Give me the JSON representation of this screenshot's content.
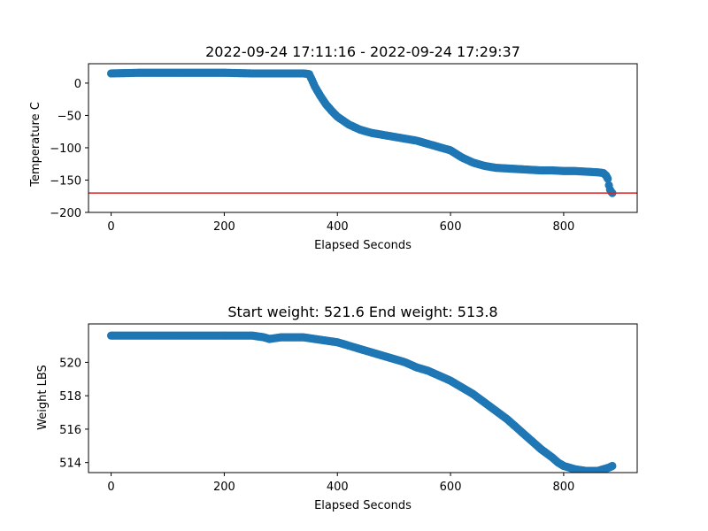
{
  "chart_data": [
    {
      "type": "scatter",
      "title": "2022-09-24 17:11:16 - 2022-09-24 17:29:37",
      "xlabel": "Elapsed Seconds",
      "ylabel": "Temperature C",
      "xlim": [
        -40,
        930
      ],
      "ylim": [
        -200,
        30
      ],
      "x_ticks": [
        0,
        200,
        400,
        600,
        800
      ],
      "y_ticks": [
        0,
        -50,
        -100,
        -150,
        -200
      ],
      "x_tick_labels": [
        "0",
        "200",
        "400",
        "600",
        "800"
      ],
      "y_tick_labels": [
        "0",
        "−50",
        "−100",
        "−150",
        "−200"
      ],
      "grid": false,
      "marker_color": "#1f77b4",
      "reference_line": {
        "y": -170,
        "color": "#d62728"
      },
      "series": [
        {
          "x": [
            0,
            50,
            100,
            150,
            200,
            250,
            300,
            340,
            350,
            355,
            360,
            370,
            380,
            390,
            400,
            420,
            440,
            460,
            480,
            500,
            520,
            540,
            560,
            580,
            600,
            620,
            640,
            660,
            680,
            700,
            720,
            740,
            760,
            780,
            800,
            820,
            840,
            860,
            870,
            875,
            878,
            880,
            882,
            884,
            886
          ],
          "y": [
            15,
            16,
            16,
            16,
            16,
            15,
            15,
            15,
            14,
            5,
            -5,
            -20,
            -33,
            -43,
            -52,
            -64,
            -72,
            -77,
            -80,
            -83,
            -86,
            -89,
            -94,
            -99,
            -104,
            -115,
            -123,
            -128,
            -131,
            -132,
            -133,
            -134,
            -135,
            -135,
            -136,
            -136,
            -137,
            -138,
            -139,
            -143,
            -148,
            -158,
            -165,
            -168,
            -170
          ]
        }
      ]
    },
    {
      "type": "scatter",
      "title": "Start weight: 521.6 End weight: 513.8",
      "xlabel": "Elapsed Seconds",
      "ylabel": "Weight LBS",
      "xlim": [
        -40,
        930
      ],
      "ylim": [
        513.4,
        522.3
      ],
      "x_ticks": [
        0,
        200,
        400,
        600,
        800
      ],
      "y_ticks": [
        514,
        516,
        518,
        520
      ],
      "x_tick_labels": [
        "0",
        "200",
        "400",
        "600",
        "800"
      ],
      "y_tick_labels": [
        "514",
        "516",
        "518",
        "520"
      ],
      "grid": false,
      "marker_color": "#1f77b4",
      "series": [
        {
          "x": [
            0,
            50,
            100,
            150,
            200,
            250,
            270,
            280,
            300,
            340,
            360,
            380,
            400,
            420,
            440,
            460,
            480,
            500,
            520,
            540,
            560,
            580,
            600,
            620,
            640,
            660,
            680,
            700,
            720,
            740,
            760,
            780,
            790,
            800,
            820,
            840,
            860,
            870,
            880,
            886
          ],
          "y": [
            521.6,
            521.6,
            521.6,
            521.6,
            521.6,
            521.6,
            521.5,
            521.4,
            521.5,
            521.5,
            521.4,
            521.3,
            521.2,
            521.0,
            520.8,
            520.6,
            520.4,
            520.2,
            520.0,
            519.7,
            519.5,
            519.2,
            518.9,
            518.5,
            518.1,
            517.6,
            517.1,
            516.6,
            516.0,
            515.4,
            514.8,
            514.3,
            514.0,
            513.8,
            513.6,
            513.5,
            513.5,
            513.6,
            513.7,
            513.8
          ]
        }
      ]
    }
  ]
}
